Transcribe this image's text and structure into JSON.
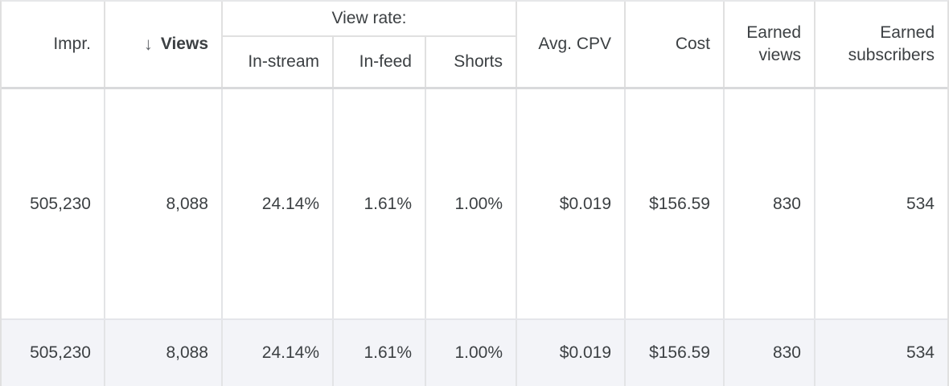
{
  "colors": {
    "text": "#3c4043",
    "sort_icon": "#5f6368",
    "grid_line": "#e0e0e0",
    "header_bottom_border": "#d9dadc",
    "summary_row_background": "#f3f4f8",
    "row_background": "#ffffff"
  },
  "table": {
    "group_header": {
      "label": "View rate:"
    },
    "columns": [
      {
        "label": "Impr."
      },
      {
        "label": "Views",
        "sort_icon": "↓"
      },
      {
        "label": "In-stream"
      },
      {
        "label": "In-feed"
      },
      {
        "label": "Shorts"
      },
      {
        "label": "Avg. CPV"
      },
      {
        "label": "Cost"
      },
      {
        "label": "Earned views"
      },
      {
        "label": "Earned subscribers"
      }
    ],
    "rows": [
      {
        "cells": [
          "505,230",
          "8,088",
          "24.14%",
          "1.61%",
          "1.00%",
          "$0.019",
          "$156.59",
          "830",
          "534"
        ]
      }
    ],
    "summary_row": {
      "cells": [
        "505,230",
        "8,088",
        "24.14%",
        "1.61%",
        "1.00%",
        "$0.019",
        "$156.59",
        "830",
        "534"
      ]
    }
  }
}
